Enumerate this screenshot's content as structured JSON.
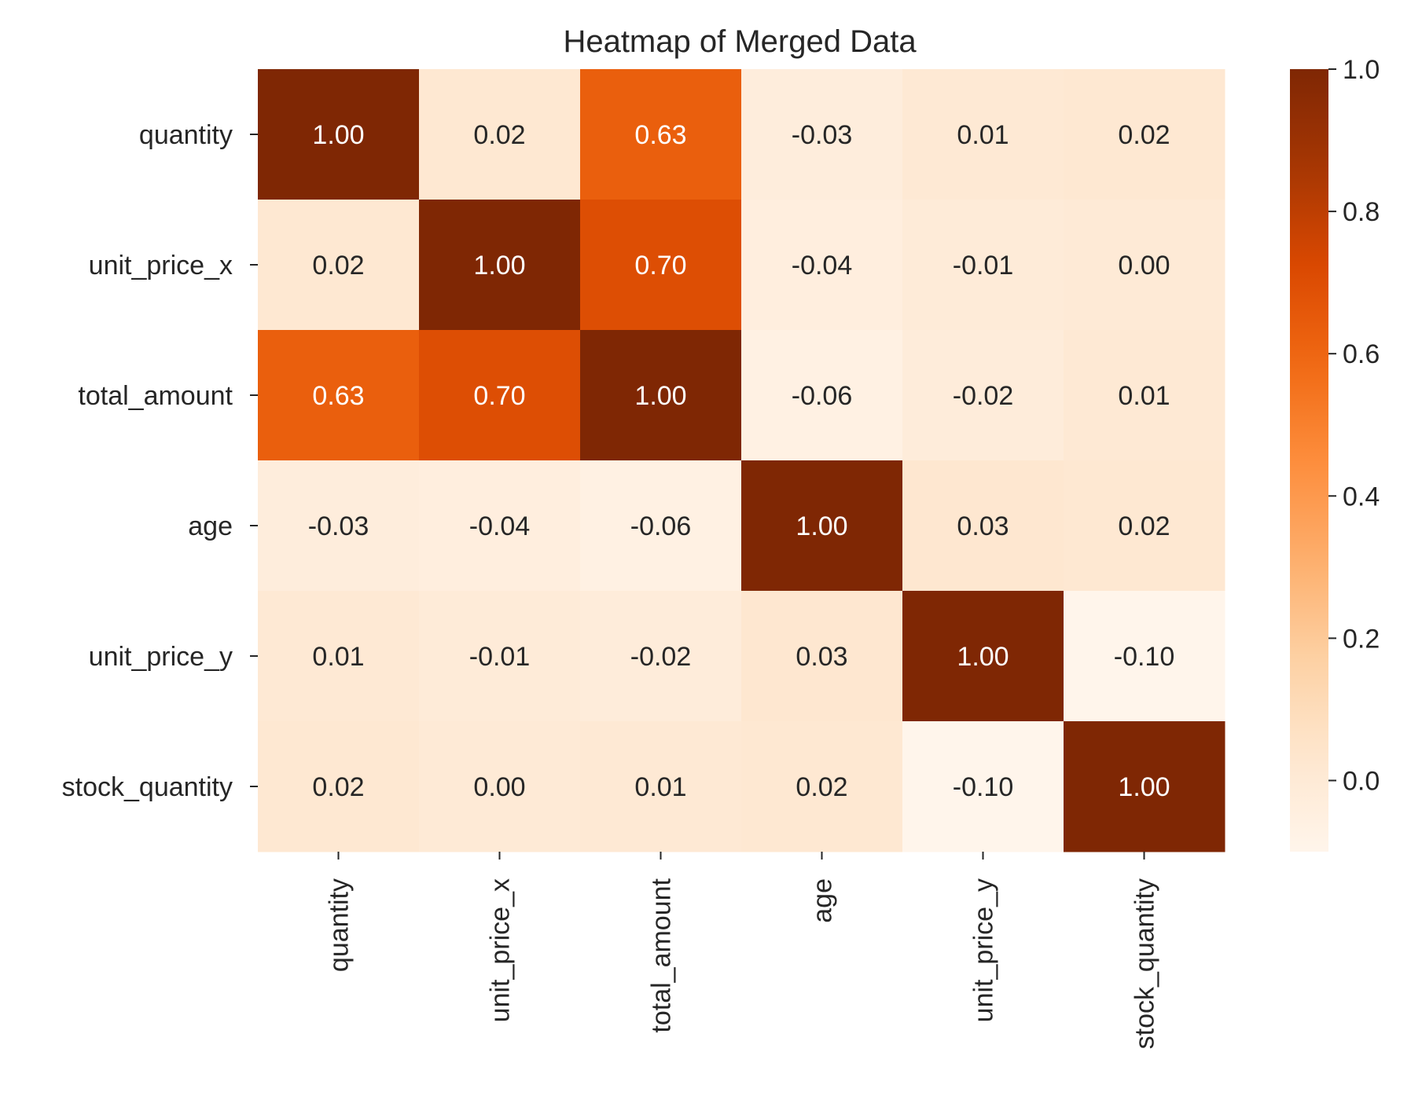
{
  "chart_data": {
    "type": "heatmap",
    "title": "Heatmap of Merged Data",
    "rows": [
      "quantity",
      "unit_price_x",
      "total_amount",
      "age",
      "unit_price_y",
      "stock_quantity"
    ],
    "columns": [
      "quantity",
      "unit_price_x",
      "total_amount",
      "age",
      "unit_price_y",
      "stock_quantity"
    ],
    "values": [
      [
        1.0,
        0.02,
        0.63,
        -0.03,
        0.01,
        0.02
      ],
      [
        0.02,
        1.0,
        0.7,
        -0.04,
        -0.01,
        0.0
      ],
      [
        0.63,
        0.7,
        1.0,
        -0.06,
        -0.02,
        0.01
      ],
      [
        -0.03,
        -0.04,
        -0.06,
        1.0,
        0.03,
        0.02
      ],
      [
        0.01,
        -0.01,
        -0.02,
        0.03,
        1.0,
        -0.1
      ],
      [
        0.02,
        0.0,
        0.01,
        0.02,
        -0.1,
        1.0
      ]
    ],
    "value_format": "2 decimals",
    "colormap": "Oranges",
    "color_range": [
      -0.1,
      1.0
    ],
    "colorbar_ticks": [
      "0.0",
      "0.2",
      "0.4",
      "0.6",
      "0.8",
      "1.0"
    ],
    "colorbar_tick_values": [
      0.0,
      0.2,
      0.4,
      0.6,
      0.8,
      1.0
    ],
    "colors": {
      "light_text": "#ffffff",
      "dark_text": "#262626",
      "axis_text": "#262626"
    }
  }
}
